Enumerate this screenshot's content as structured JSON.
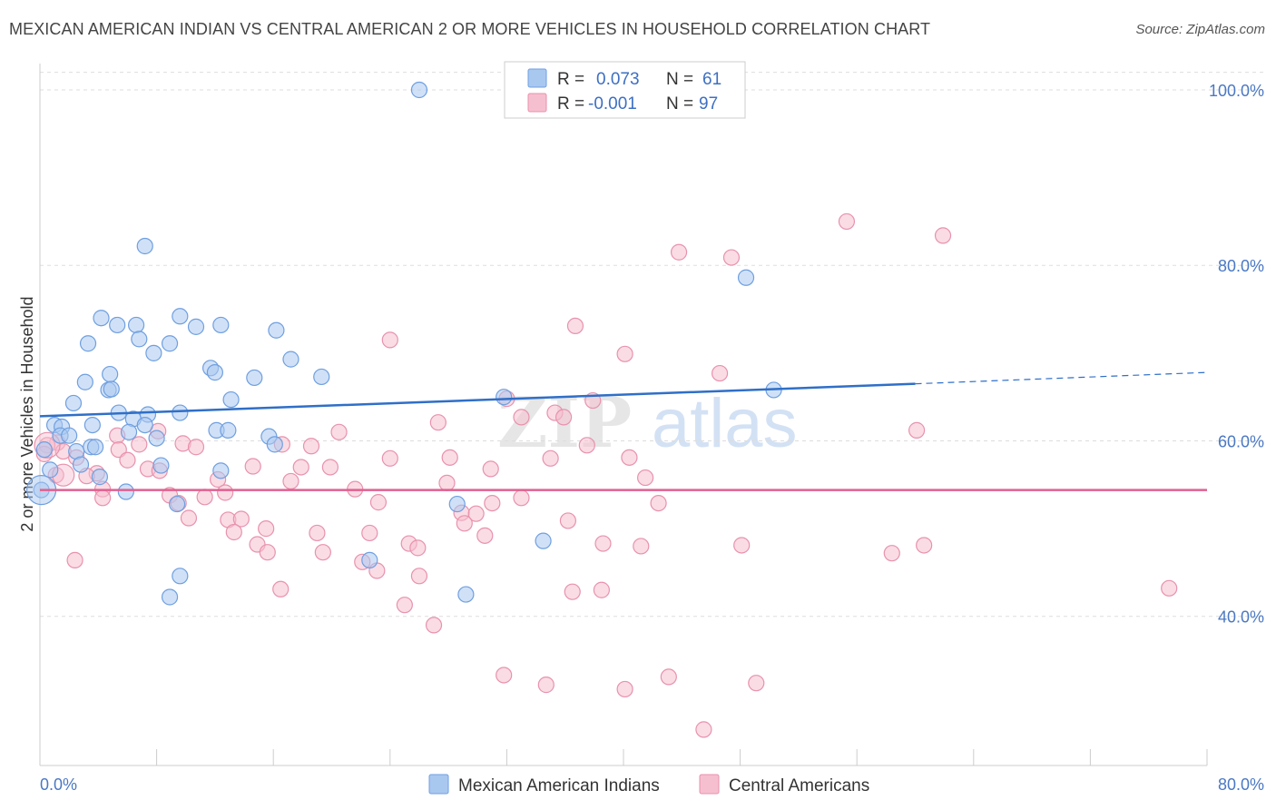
{
  "title": "MEXICAN AMERICAN INDIAN VS CENTRAL AMERICAN 2 OR MORE VEHICLES IN HOUSEHOLD CORRELATION CHART",
  "source": "Source: ZipAtlas.com",
  "watermark": {
    "zip": "ZIP",
    "atlas": "atlas"
  },
  "colors": {
    "blue_fill": "#a9c8f0",
    "blue_stroke": "#6f9fe0",
    "blue_line": "#2f6fc8",
    "pink_fill": "#f6bfd0",
    "pink_stroke": "#e892ad",
    "pink_line": "#e06090",
    "axis_text": "#4a78c4",
    "grid": "#dddddd"
  },
  "legend": {
    "rows": [
      {
        "r_label": "R =",
        "r_value": "0.073",
        "n_label": "N =",
        "n_value": "61"
      },
      {
        "r_label": "R =",
        "r_value": "-0.001",
        "n_label": "N =",
        "n_value": "97"
      }
    ]
  },
  "chart_data": {
    "type": "scatter",
    "title": "MEXICAN AMERICAN INDIAN VS CENTRAL AMERICAN 2 OR MORE VEHICLES IN HOUSEHOLD CORRELATION CHART",
    "xlabel": "",
    "ylabel": "2 or more Vehicles in Household",
    "xlim": [
      0,
      80
    ],
    "ylim": [
      23,
      103
    ],
    "x_tick_labels": [
      "0.0%",
      "80.0%"
    ],
    "y_ticks": [
      40,
      60,
      80,
      100
    ],
    "y_tick_labels": [
      "40.0%",
      "60.0%",
      "80.0%",
      "100.0%"
    ],
    "grid": "horizontal dashed",
    "legend_position": "top-center",
    "series": [
      {
        "name": "Mexican American Indians",
        "color": "#a9c8f0",
        "trend": {
          "x": [
            0,
            60,
            80
          ],
          "y": [
            62.8,
            66.5,
            67.8
          ],
          "solid_until_x": 60
        },
        "points": [
          [
            26.0,
            100.0
          ],
          [
            7.2,
            82.2
          ],
          [
            48.4,
            78.6
          ],
          [
            4.2,
            74.0
          ],
          [
            9.6,
            74.2
          ],
          [
            5.3,
            73.2
          ],
          [
            6.6,
            73.2
          ],
          [
            12.4,
            73.2
          ],
          [
            10.7,
            73.0
          ],
          [
            16.2,
            72.6
          ],
          [
            3.3,
            71.1
          ],
          [
            6.8,
            71.6
          ],
          [
            8.9,
            71.1
          ],
          [
            7.8,
            70.0
          ],
          [
            17.2,
            69.3
          ],
          [
            11.7,
            68.3
          ],
          [
            12.0,
            67.8
          ],
          [
            19.3,
            67.3
          ],
          [
            14.7,
            67.2
          ],
          [
            4.8,
            67.6
          ],
          [
            3.1,
            66.7
          ],
          [
            4.7,
            65.8
          ],
          [
            4.9,
            65.9
          ],
          [
            31.8,
            65.0
          ],
          [
            50.3,
            65.8
          ],
          [
            13.1,
            64.7
          ],
          [
            2.3,
            64.3
          ],
          [
            5.4,
            63.2
          ],
          [
            6.4,
            62.5
          ],
          [
            7.4,
            63.0
          ],
          [
            9.6,
            63.2
          ],
          [
            1.0,
            61.8
          ],
          [
            3.6,
            61.8
          ],
          [
            7.2,
            61.8
          ],
          [
            12.1,
            61.2
          ],
          [
            12.9,
            61.2
          ],
          [
            6.1,
            61.0
          ],
          [
            8.0,
            60.3
          ],
          [
            1.5,
            61.6
          ],
          [
            1.4,
            60.6
          ],
          [
            2.0,
            60.6
          ],
          [
            15.7,
            60.5
          ],
          [
            16.1,
            59.6
          ],
          [
            3.5,
            59.3
          ],
          [
            3.8,
            59.3
          ],
          [
            0.3,
            59.0
          ],
          [
            2.5,
            58.8
          ],
          [
            0.7,
            56.7
          ],
          [
            8.3,
            57.2
          ],
          [
            2.8,
            57.3
          ],
          [
            4.1,
            55.9
          ],
          [
            12.4,
            56.6
          ],
          [
            0.1,
            54.4
          ],
          [
            5.9,
            54.2
          ],
          [
            9.4,
            52.8
          ],
          [
            28.6,
            52.8
          ],
          [
            34.5,
            48.6
          ],
          [
            22.6,
            46.4
          ],
          [
            9.6,
            44.6
          ],
          [
            8.9,
            42.2
          ],
          [
            29.2,
            42.5
          ]
        ]
      },
      {
        "name": "Central Americans",
        "color": "#f6bfd0",
        "trend": {
          "x": [
            0,
            80
          ],
          "y": [
            54.4,
            54.4
          ]
        },
        "points": [
          [
            55.3,
            85.0
          ],
          [
            61.9,
            83.4
          ],
          [
            43.8,
            81.5
          ],
          [
            47.4,
            80.9
          ],
          [
            36.7,
            73.1
          ],
          [
            24.0,
            71.5
          ],
          [
            40.1,
            69.9
          ],
          [
            46.6,
            67.7
          ],
          [
            32.0,
            64.8
          ],
          [
            37.9,
            64.6
          ],
          [
            35.3,
            63.2
          ],
          [
            33.0,
            62.7
          ],
          [
            35.9,
            62.7
          ],
          [
            27.3,
            62.1
          ],
          [
            60.1,
            61.2
          ],
          [
            20.5,
            61.0
          ],
          [
            8.1,
            61.1
          ],
          [
            5.3,
            60.6
          ],
          [
            1.2,
            59.8
          ],
          [
            6.8,
            59.6
          ],
          [
            9.8,
            59.7
          ],
          [
            10.7,
            59.3
          ],
          [
            16.6,
            59.6
          ],
          [
            18.6,
            59.4
          ],
          [
            37.5,
            59.5
          ],
          [
            5.4,
            59.0
          ],
          [
            1.6,
            58.8
          ],
          [
            2.5,
            58.1
          ],
          [
            6.0,
            57.8
          ],
          [
            24.0,
            58.0
          ],
          [
            28.1,
            58.1
          ],
          [
            35.0,
            58.0
          ],
          [
            40.4,
            58.1
          ],
          [
            14.6,
            57.1
          ],
          [
            17.9,
            57.0
          ],
          [
            19.9,
            57.0
          ],
          [
            7.4,
            56.8
          ],
          [
            8.2,
            56.6
          ],
          [
            30.9,
            56.8
          ],
          [
            3.9,
            56.3
          ],
          [
            3.2,
            56.0
          ],
          [
            1.1,
            56.1
          ],
          [
            41.5,
            55.8
          ],
          [
            12.2,
            55.6
          ],
          [
            17.2,
            55.4
          ],
          [
            27.9,
            55.2
          ],
          [
            4.3,
            54.5
          ],
          [
            12.7,
            54.1
          ],
          [
            21.6,
            54.5
          ],
          [
            8.9,
            53.8
          ],
          [
            4.3,
            53.5
          ],
          [
            11.3,
            53.6
          ],
          [
            33.0,
            53.5
          ],
          [
            23.2,
            53.0
          ],
          [
            31.0,
            52.9
          ],
          [
            42.4,
            52.9
          ],
          [
            9.5,
            52.9
          ],
          [
            28.9,
            51.8
          ],
          [
            29.9,
            51.7
          ],
          [
            10.2,
            51.2
          ],
          [
            12.9,
            51.0
          ],
          [
            13.8,
            51.1
          ],
          [
            36.2,
            50.9
          ],
          [
            29.1,
            50.6
          ],
          [
            15.5,
            50.0
          ],
          [
            13.3,
            49.6
          ],
          [
            19.0,
            49.5
          ],
          [
            22.6,
            49.5
          ],
          [
            30.5,
            49.2
          ],
          [
            25.3,
            48.3
          ],
          [
            25.9,
            47.8
          ],
          [
            38.6,
            48.3
          ],
          [
            41.2,
            48.0
          ],
          [
            48.1,
            48.1
          ],
          [
            60.6,
            48.1
          ],
          [
            14.9,
            48.2
          ],
          [
            15.6,
            47.3
          ],
          [
            19.4,
            47.3
          ],
          [
            58.4,
            47.2
          ],
          [
            22.1,
            46.2
          ],
          [
            23.1,
            45.2
          ],
          [
            26.0,
            44.6
          ],
          [
            2.4,
            46.4
          ],
          [
            16.5,
            43.1
          ],
          [
            36.5,
            42.8
          ],
          [
            38.5,
            43.0
          ],
          [
            77.4,
            43.2
          ],
          [
            25.0,
            41.3
          ],
          [
            27.0,
            39.0
          ],
          [
            31.8,
            33.3
          ],
          [
            34.7,
            32.2
          ],
          [
            40.1,
            31.7
          ],
          [
            43.1,
            33.1
          ],
          [
            49.1,
            32.4
          ],
          [
            45.5,
            27.1
          ],
          [
            0.5,
            59.5
          ],
          [
            0.3,
            58.5
          ]
        ]
      }
    ]
  },
  "bottom_legend": [
    "Mexican American Indians",
    "Central Americans"
  ]
}
